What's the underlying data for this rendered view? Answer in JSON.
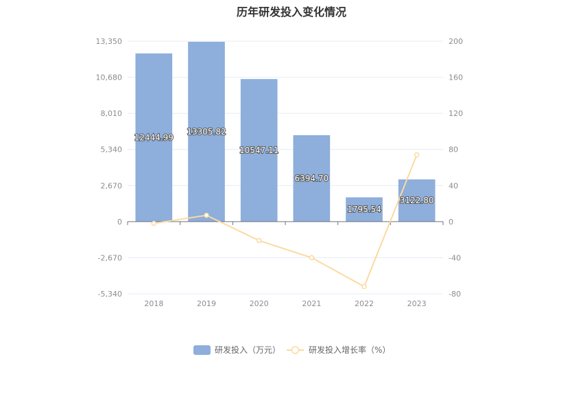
{
  "chart_data": {
    "type": "bar",
    "title": "历年研发投入变化情况",
    "categories": [
      "2018",
      "2019",
      "2020",
      "2021",
      "2022",
      "2023"
    ],
    "series": [
      {
        "name": "研发投入（万元）",
        "type": "bar",
        "axis": "left",
        "values": [
          12444.99,
          13305.82,
          10547.11,
          6394.7,
          1795.54,
          3122.8
        ],
        "labels": [
          "12444.99",
          "13305.82",
          "10547.11",
          "6394.70",
          "1795.54",
          "3122.80"
        ]
      },
      {
        "name": "研发投入增长率（%）",
        "type": "line",
        "axis": "right",
        "values": [
          -2,
          7,
          -21,
          -40,
          -72,
          74
        ]
      }
    ],
    "y_left": {
      "ylim": [
        -5340,
        13350
      ],
      "ticks": [
        13350,
        10680,
        8010,
        5340,
        2670,
        0,
        -2670,
        -5340
      ],
      "tick_labels": [
        "13,350",
        "10,680",
        "8,010",
        "5,340",
        "2,670",
        "0",
        "-2,670",
        "-5,340"
      ]
    },
    "y_right": {
      "ylim": [
        -80,
        200
      ],
      "ticks": [
        200,
        160,
        120,
        80,
        40,
        0,
        -40,
        -80
      ],
      "tick_labels": [
        "200",
        "160",
        "120",
        "80",
        "40",
        "0",
        "-40",
        "-80"
      ]
    },
    "grid": true,
    "legend_position": "bottom",
    "colors": {
      "bar": "#8eaedb",
      "line": "#fdd9a0",
      "grid": "#e6ebf5",
      "axis": "#6e7079"
    }
  }
}
